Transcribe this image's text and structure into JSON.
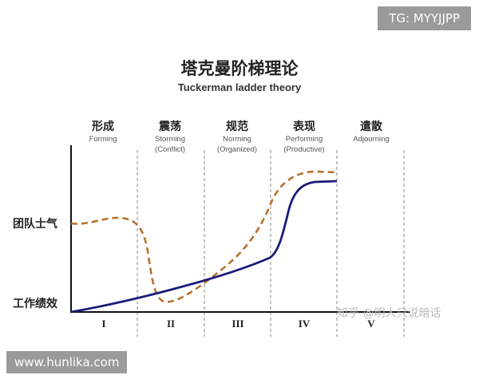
{
  "watermark_top": "TG: MYYJJPP",
  "title_zh": "塔克曼阶梯理论",
  "title_en": "Tuckerman ladder theory",
  "stages": [
    {
      "zh": "形成",
      "en": "Forming",
      "en2": ""
    },
    {
      "zh": "震荡",
      "en": "Storming",
      "en2": "(Conflict)"
    },
    {
      "zh": "规范",
      "en": "Norming",
      "en2": "(Organized)"
    },
    {
      "zh": "表现",
      "en": "Performing",
      "en2": "(Productive)"
    },
    {
      "zh": "遣散",
      "en": "Adjourning",
      "en2": ""
    }
  ],
  "y_labels": {
    "morale": "团队士气",
    "performance": "工作绩效"
  },
  "roman_numerals": [
    "I",
    "II",
    "III",
    "IV",
    "V"
  ],
  "watermark_zhihu": "知乎 @明人只说暗话",
  "watermark_site": "www.hunlika.com",
  "colors": {
    "morale_line": "#b8722c",
    "performance_line": "#1c1a7a",
    "axis": "#111111",
    "divider": "#888888"
  }
}
